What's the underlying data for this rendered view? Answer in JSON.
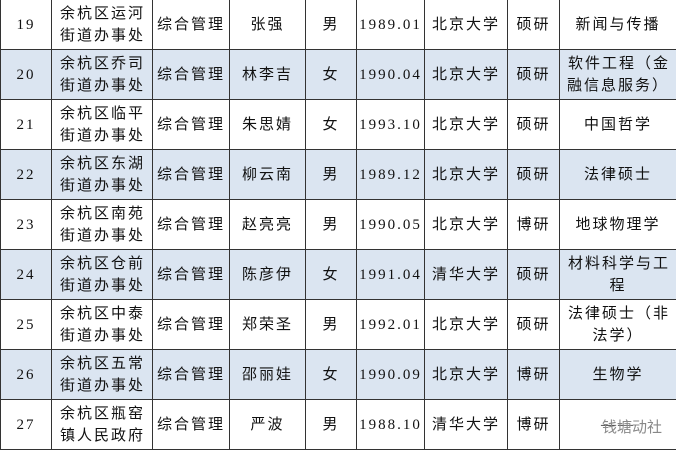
{
  "table": {
    "rows": [
      [
        "19",
        [
          "余杭区运河",
          "街道办事处"
        ],
        "综合管理",
        "张强",
        "男",
        "1989.01",
        "北京大学",
        "硕研",
        [
          "新闻与传播"
        ]
      ],
      [
        "20",
        [
          "余杭区乔司",
          "街道办事处"
        ],
        "综合管理",
        "林李吉",
        "女",
        "1990.04",
        "北京大学",
        "硕研",
        [
          "软件工程（金",
          "融信息服务）"
        ]
      ],
      [
        "21",
        [
          "余杭区临平",
          "街道办事处"
        ],
        "综合管理",
        "朱思婧",
        "女",
        "1993.10",
        "北京大学",
        "硕研",
        [
          "中国哲学"
        ]
      ],
      [
        "22",
        [
          "余杭区东湖",
          "街道办事处"
        ],
        "综合管理",
        "柳云南",
        "男",
        "1989.12",
        "北京大学",
        "硕研",
        [
          "法律硕士"
        ]
      ],
      [
        "23",
        [
          "余杭区南苑",
          "街道办事处"
        ],
        "综合管理",
        "赵亮亮",
        "男",
        "1990.05",
        "北京大学",
        "博研",
        [
          "地球物理学"
        ]
      ],
      [
        "24",
        [
          "余杭区仓前",
          "街道办事处"
        ],
        "综合管理",
        "陈彦伊",
        "女",
        "1991.04",
        "清华大学",
        "硕研",
        [
          "材料科学与工",
          "程"
        ]
      ],
      [
        "25",
        [
          "余杭区中泰",
          "街道办事处"
        ],
        "综合管理",
        "郑荣圣",
        "男",
        "1992.01",
        "北京大学",
        "硕研",
        [
          "法律硕士（非",
          "法学）"
        ]
      ],
      [
        "26",
        [
          "余杭区五常",
          "街道办事处"
        ],
        "综合管理",
        "邵丽娃",
        "女",
        "1990.09",
        "北京大学",
        "博研",
        [
          "生物学"
        ]
      ],
      [
        "27",
        [
          "余杭区瓶窑",
          "镇人民政府"
        ],
        "综合管理",
        "严波",
        "男",
        "1988.10",
        "清华大学",
        "博研",
        [
          "——"
        ]
      ]
    ]
  },
  "watermark": "钱塘动社"
}
